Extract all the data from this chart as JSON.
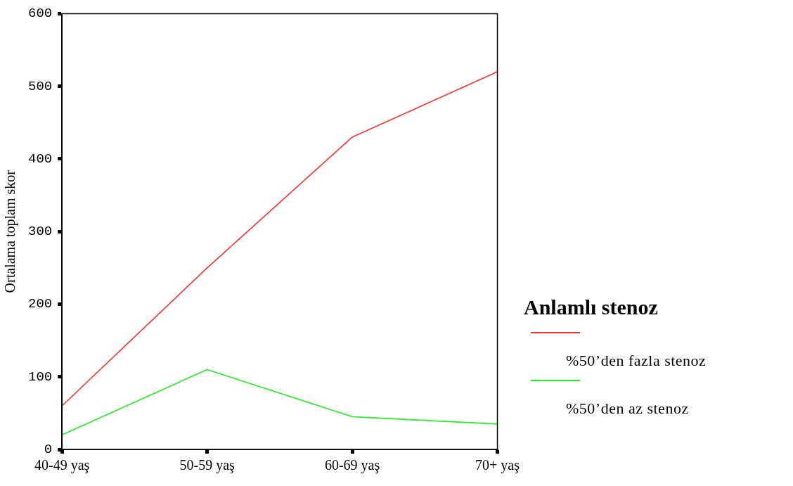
{
  "chart_data": {
    "type": "line",
    "ylabel": "Ortalama toplam skor",
    "legend_title": "Anlamlı stenoz",
    "legend": "right",
    "categories": [
      "40-49 yaş",
      "50-59 yaş",
      "60-69 yaş",
      "70+ yaş"
    ],
    "series": [
      {
        "name": "%50’den fazla stenoz",
        "color": "#ff3030",
        "values": [
          60,
          250,
          430,
          520
        ]
      },
      {
        "name": "%50’den az stenoz",
        "color": "#22ee22",
        "values": [
          20,
          110,
          45,
          35
        ]
      }
    ],
    "ylim": [
      0,
      600
    ],
    "yticks": [
      0,
      100,
      200,
      300,
      400,
      500,
      600
    ],
    "grid": false,
    "marker": "none",
    "line_style": "solid"
  }
}
